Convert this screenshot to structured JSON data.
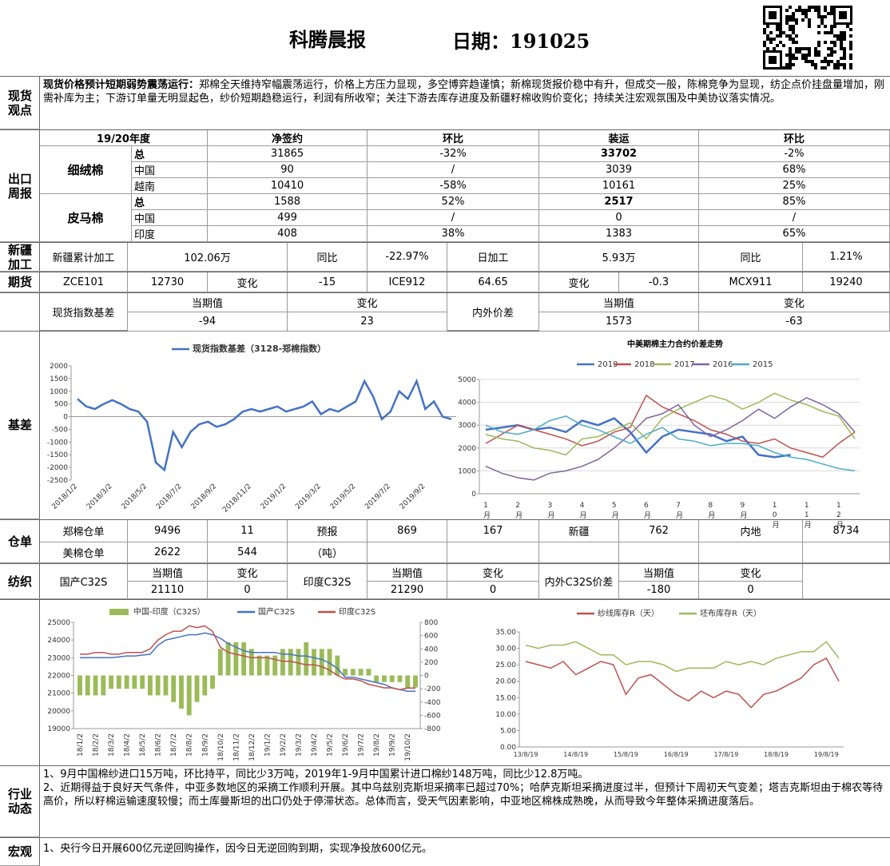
{
  "header": {
    "title": "科腾晨报",
    "date": "日期：191025"
  },
  "sections": [
    "现货观点",
    "出口周报",
    "新疆加工",
    "期货",
    "基差",
    "仓单",
    "纺织",
    "行业动态",
    "宏观"
  ],
  "view": {
    "lead": "现货价格预计短期弱势震荡运行：",
    "text": "郑棉全天维持窄幅震荡运行，价格上方压力显现，多空博弈趋谨慎；新棉现货报价稳中有升，但成交一般，陈棉竞争为显现，纺企点价挂盘量增加，刚需补库为主；下游订单量无明显起色，纱价短期趋稳运行，利润有所收窄；关注下游去库存进度及新疆籽棉收购价变化；持续关注宏观氛围及中美协议落实情况。"
  },
  "export": {
    "header": [
      "19/20年度",
      "净签约",
      "环比",
      "装运",
      "环比"
    ],
    "groups": [
      {
        "name": "细绒棉",
        "rows": [
          [
            "总",
            "31865",
            "-32%",
            "33702",
            "-2%"
          ],
          [
            "中国",
            "90",
            "/",
            "3039",
            "68%"
          ],
          [
            "越南",
            "10410",
            "-58%",
            "10161",
            "25%"
          ]
        ]
      },
      {
        "name": "皮马棉",
        "rows": [
          [
            "总",
            "1588",
            "52%",
            "2517",
            "85%"
          ],
          [
            "中国",
            "499",
            "/",
            "0",
            "/"
          ],
          [
            "印度",
            "408",
            "38%",
            "1383",
            "65%"
          ]
        ]
      }
    ]
  },
  "xinjiang": [
    "新疆累计加工",
    "102.06万",
    "同比",
    "-22.97%",
    "日加工",
    "5.93万",
    "同比",
    "1.21%"
  ],
  "futures": [
    "ZCE101",
    "12730",
    "变化",
    "-15",
    "ICE912",
    "64.65",
    "变化",
    "-0.3",
    "MCX911",
    "19240"
  ],
  "basis": {
    "label": "现货指数基差",
    "cols": [
      [
        "当期值",
        "-94"
      ],
      [
        "变化",
        "23"
      ]
    ],
    "label2": "内外价差",
    "cols2": [
      [
        "当期值",
        "1573"
      ],
      [
        "变化",
        "-63"
      ]
    ]
  },
  "warehouse": [
    [
      "郑棉仓单",
      "9496",
      "11",
      "预报",
      "869",
      "167",
      "新疆",
      "762",
      "内地",
      "8734"
    ],
    [
      "美棉仓单",
      "2622",
      "544",
      "（吨）"
    ]
  ],
  "textile": [
    {
      "name": "国产C32S",
      "cols": [
        [
          "当期值",
          "21110"
        ],
        [
          "变化",
          "0"
        ]
      ]
    },
    {
      "name": "印度C32S",
      "cols": [
        [
          "当期值",
          "21290"
        ],
        [
          "变化",
          "0"
        ]
      ]
    },
    {
      "name": "内外C32S价差",
      "cols": [
        [
          "当期值",
          "-180"
        ],
        [
          "变化",
          "0"
        ]
      ]
    }
  ],
  "news": [
    "1、9月中国棉纱进口15万吨，环比持平，同比少3万吨，2019年1-9月中国累计进口棉纱148万吨，同比少12.8万吨。",
    "2、近期得益于良好天气条件，中亚多数地区的采摘工作顺利开展。其中乌兹别克斯坦采摘率已超过70%；哈萨克斯坦采摘进度过半，但预计下周初天气变差；塔吉克斯坦由于棉农等待高价，所以籽棉运输速度较慢；而土库曼斯坦的出口仍处于停滞状态。总体而言，受天气因素影响，中亚地区棉株成熟晚，从而导致今年整体采摘进度落后。"
  ],
  "macro": [
    "1、央行今日开展600亿元逆回购操作，因今日无逆回购到期，实现净投放600亿元。"
  ],
  "chart_data": [
    {
      "type": "line",
      "grid": false,
      "categories": [
        "2018/1/2",
        null,
        null,
        null,
        "2018/3/2",
        null,
        null,
        null,
        "2018/5/2",
        null,
        null,
        null,
        "2018/7/2",
        null,
        null,
        null,
        "2018/9/2",
        null,
        null,
        null,
        "2018/11/2",
        null,
        null,
        null,
        "2019/1/2",
        null,
        null,
        null,
        "2019/3/2",
        null,
        null,
        null,
        "2019/5/2",
        null,
        null,
        null,
        "2019/7/2",
        null,
        null,
        null,
        "2019/9/2",
        null,
        null,
        null
      ],
      "series": [
        {
          "name": "现货指数基差（3128-郑棉指数）",
          "color": "#4472c4",
          "values": [
            700,
            400,
            300,
            500,
            650,
            500,
            300,
            200,
            -200,
            -1800,
            -2100,
            -600,
            -1200,
            -600,
            -300,
            -200,
            -400,
            -300,
            -100,
            200,
            300,
            200,
            300,
            400,
            200,
            300,
            400,
            600,
            100,
            300,
            200,
            400,
            600,
            1400,
            800,
            -100,
            200,
            1000,
            700,
            1400,
            300,
            600,
            0,
            -100
          ]
        }
      ],
      "ylim": [
        -2500,
        2000
      ],
      "yticks": [
        -2500,
        -2000,
        -1500,
        -1000,
        -500,
        0,
        500,
        1000,
        1500,
        2000
      ]
    },
    {
      "type": "line",
      "title": "中美期棉主力合约价差走势",
      "grid": true,
      "categories": [
        "1月",
        null,
        "2月",
        null,
        "3月",
        null,
        "4月",
        null,
        "5月",
        null,
        "6月",
        null,
        "7月",
        null,
        "8月",
        null,
        "9月",
        null,
        "10月",
        null,
        "11月",
        null,
        "12月",
        null
      ],
      "series": [
        {
          "name": "2019",
          "color": "#4472c4",
          "values": [
            2800,
            2900,
            3000,
            2800,
            2900,
            2700,
            3200,
            3000,
            3300,
            2700,
            1800,
            2500,
            2800,
            2700,
            2600,
            2300,
            2500,
            1700,
            1600,
            1700,
            null,
            null,
            null,
            null
          ]
        },
        {
          "name": "2018",
          "color": "#c0504d",
          "values": [
            2200,
            2600,
            3000,
            2800,
            2600,
            2400,
            2100,
            2300,
            2700,
            2900,
            4300,
            3800,
            3500,
            3200,
            2800,
            2600,
            2300,
            2200,
            2400,
            2000,
            1800,
            1600,
            2200,
            2700
          ]
        },
        {
          "name": "2017",
          "color": "#9bbb59",
          "values": [
            2600,
            2400,
            2300,
            2000,
            1900,
            1700,
            2400,
            2500,
            2800,
            3100,
            2400,
            3300,
            3700,
            4000,
            4300,
            4100,
            3700,
            4000,
            4400,
            4100,
            3900,
            3600,
            3400,
            2400
          ]
        },
        {
          "name": "2016",
          "color": "#8064a2",
          "values": [
            1200,
            900,
            700,
            600,
            900,
            1000,
            1200,
            1500,
            2000,
            2600,
            3300,
            3500,
            3900,
            3000,
            2500,
            2800,
            3200,
            3700,
            3300,
            3800,
            4200,
            3900,
            3500,
            2700
          ]
        },
        {
          "name": "2015",
          "color": "#4bacc6",
          "values": [
            3000,
            2700,
            2600,
            2800,
            3200,
            3400,
            3000,
            2800,
            2500,
            2200,
            2600,
            2900,
            2400,
            2300,
            2100,
            2200,
            2200,
            2100,
            1800,
            1600,
            1500,
            1300,
            1100,
            1000
          ]
        }
      ],
      "ylim": [
        0,
        5000
      ],
      "yticks": [
        0,
        1000,
        2000,
        3000,
        4000,
        5000
      ]
    },
    {
      "type": "combo",
      "grid": false,
      "categories": [
        "18/1/2",
        null,
        "18/2/2",
        null,
        "18/3/2",
        null,
        "18/4/2",
        null,
        "18/5/2",
        null,
        "18/6/2",
        null,
        "18/7/2",
        null,
        "18/8/2",
        null,
        "18/9/2",
        null,
        "18/10/2",
        null,
        "18/11/2",
        null,
        "18/12/2",
        null,
        "19/1/2",
        null,
        "19/2/2",
        null,
        "19/3/2",
        null,
        "19/4/2",
        null,
        "19/5/2",
        null,
        "19/6/2",
        null,
        "19/7/2",
        null,
        "19/8/2",
        null,
        "19/9/2",
        null,
        "19/10/2",
        null
      ],
      "series": [
        {
          "name": "中国-印度（C32S）",
          "color": "#9bbb59",
          "type": "bar",
          "axis": "y2",
          "values": [
            -300,
            -300,
            -300,
            -300,
            -200,
            -200,
            -200,
            -200,
            -200,
            -300,
            -300,
            -300,
            -400,
            -500,
            -600,
            -400,
            -300,
            -200,
            400,
            500,
            500,
            500,
            400,
            300,
            300,
            300,
            400,
            400,
            400,
            500,
            400,
            400,
            400,
            300,
            100,
            100,
            100,
            100,
            -100,
            -100,
            -100,
            -100,
            -200,
            -180
          ]
        },
        {
          "name": "国产C32S",
          "color": "#4472c4",
          "type": "line",
          "values": [
            23000,
            23000,
            23000,
            23000,
            23000,
            23050,
            23100,
            23100,
            23150,
            23200,
            23700,
            24000,
            24100,
            24200,
            24300,
            24300,
            24400,
            24300,
            24100,
            23800,
            23600,
            23400,
            23300,
            23300,
            23300,
            23300,
            23200,
            23200,
            23100,
            23100,
            23000,
            22900,
            22700,
            22400,
            21900,
            21900,
            21800,
            21700,
            21600,
            21500,
            21300,
            21200,
            21110,
            21110
          ]
        },
        {
          "name": "印度C32S",
          "color": "#c0504d",
          "type": "line",
          "values": [
            23200,
            23200,
            23300,
            23300,
            23200,
            23200,
            23300,
            23300,
            23300,
            23500,
            24000,
            24300,
            24500,
            24500,
            24800,
            24700,
            24800,
            24500,
            23600,
            23300,
            23200,
            23100,
            23000,
            23000,
            23000,
            22900,
            22800,
            22800,
            22700,
            22600,
            22600,
            22500,
            22300,
            22000,
            21800,
            21800,
            21700,
            21500,
            21400,
            21300,
            21300,
            21200,
            21290,
            21290
          ]
        }
      ],
      "ylim": [
        19000,
        25000
      ],
      "yticks": [
        19000,
        20000,
        21000,
        22000,
        23000,
        24000,
        25000
      ],
      "y2lim": [
        -800,
        800
      ],
      "y2ticks": [
        -800,
        -600,
        -400,
        -200,
        0,
        200,
        400,
        600,
        800
      ]
    },
    {
      "type": "line",
      "grid": false,
      "categories": [
        "13/8/19",
        null,
        null,
        null,
        "14/8/19",
        null,
        null,
        null,
        "15/8/19",
        null,
        null,
        null,
        "16/8/19",
        null,
        null,
        null,
        "17/8/19",
        null,
        null,
        null,
        "18/8/19",
        null,
        null,
        null,
        "19/8/19",
        null
      ],
      "series": [
        {
          "name": "纱线库存R（天）",
          "color": "#c0504d",
          "values": [
            26,
            25,
            24,
            26,
            22,
            24,
            26,
            25,
            16,
            21,
            22,
            19,
            16,
            14,
            17,
            15,
            17,
            16,
            12,
            16,
            17,
            19,
            21,
            25,
            27,
            20
          ]
        },
        {
          "name": "坯布库存R（天）",
          "color": "#9bbb59",
          "values": [
            31,
            30,
            31,
            31,
            32,
            30,
            28,
            28,
            25,
            26,
            26,
            25,
            23,
            24,
            24,
            24,
            26,
            25,
            26,
            25,
            27,
            28,
            29,
            29,
            32,
            27
          ]
        }
      ],
      "ylim": [
        0,
        35
      ],
      "yticks": [
        {
          "value": 0,
          "label": "0.00"
        },
        {
          "value": 5,
          "label": "5.00"
        },
        {
          "value": 10,
          "label": "10.00"
        },
        {
          "value": 15,
          "label": "15.00"
        },
        {
          "value": 20,
          "label": "20.00"
        },
        {
          "value": 25,
          "label": "25.00"
        },
        {
          "value": 30,
          "label": "30.00"
        },
        {
          "value": 35,
          "label": "35.00"
        }
      ]
    }
  ]
}
